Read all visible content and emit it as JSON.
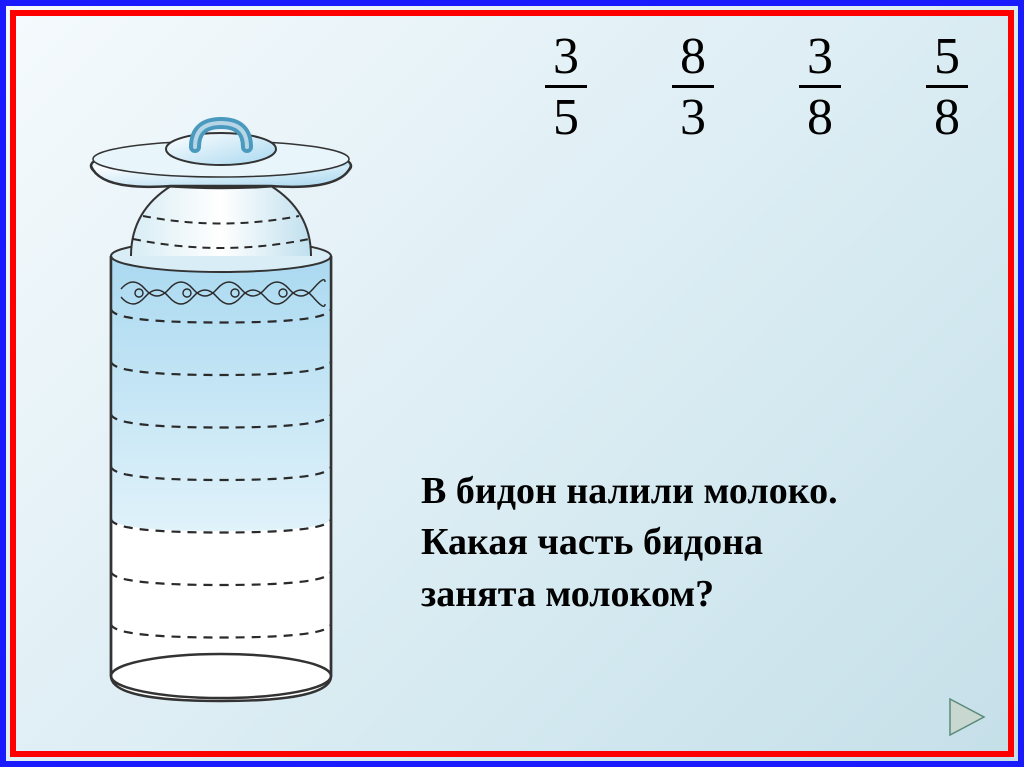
{
  "fractions": [
    {
      "numerator": "3",
      "denominator": "5"
    },
    {
      "numerator": "8",
      "denominator": "3"
    },
    {
      "numerator": "3",
      "denominator": "8"
    },
    {
      "numerator": "5",
      "denominator": "8"
    }
  ],
  "question": {
    "line1": "В бидон налили молоко.",
    "line2": "Какая часть бидона",
    "line3": "занята молоком?"
  },
  "milk_can": {
    "total_divisions": 8,
    "filled_divisions": 5,
    "body_color_top": "#a8d8f0",
    "body_color_bottom": "#e8f4fa",
    "body_empty_color": "#ffffff",
    "outline_color": "#333333",
    "dash_color": "#2a2a2a",
    "lid_color_light": "#ffffff",
    "lid_color_dark": "#8ec5e0",
    "handle_color": "#88c5e0"
  },
  "slide_style": {
    "outer_border": "#1a1aff",
    "inner_border": "#ff0000",
    "bg_gradient_start": "#f5fafd",
    "bg_gradient_end": "#c5dfe8",
    "text_color": "#000000",
    "fraction_fontsize": 52,
    "question_fontsize": 38
  },
  "nav_button": {
    "fill": "#c8d8d0",
    "stroke": "#5a8a7a"
  }
}
